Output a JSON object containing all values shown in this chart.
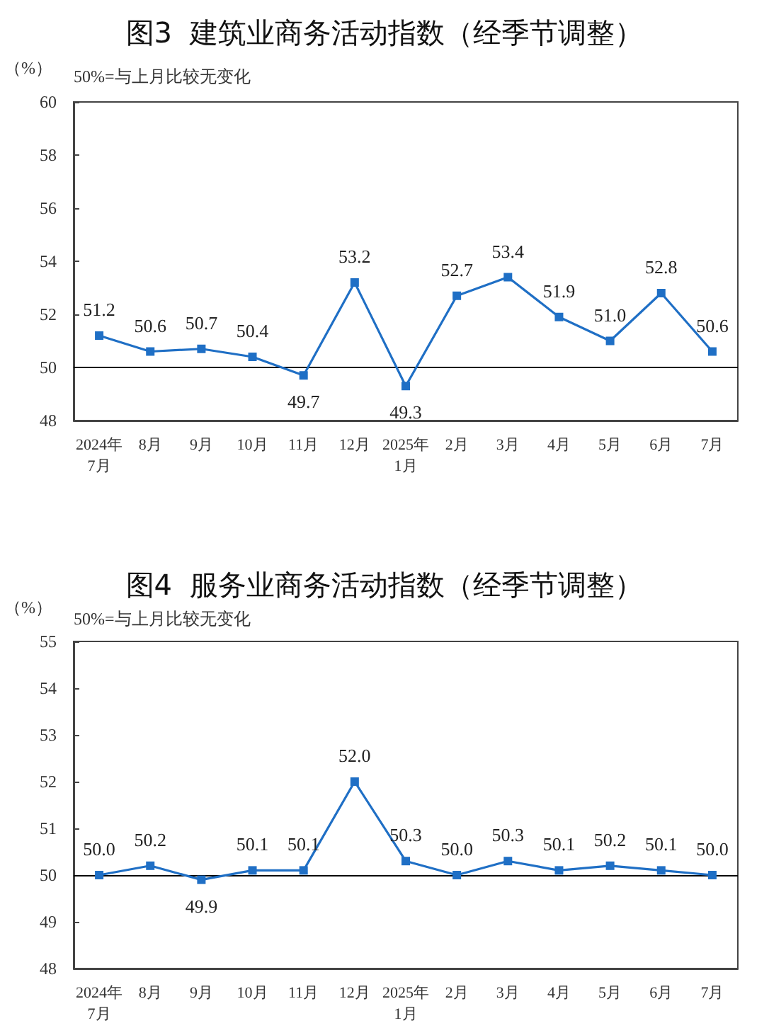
{
  "chart_data": [
    {
      "type": "line",
      "title": "图3  建筑业商务活动指数（经季节调整）",
      "ylabel": "（%）",
      "annotations": [
        "50%=与上月比较无变化"
      ],
      "categories": [
        "2024年\n7月",
        "8月",
        "9月",
        "10月",
        "11月",
        "12月",
        "2025年\n1月",
        "2月",
        "3月",
        "4月",
        "5月",
        "6月",
        "7月"
      ],
      "values": [
        51.2,
        50.6,
        50.7,
        50.4,
        49.7,
        53.2,
        49.3,
        52.7,
        53.4,
        51.9,
        51.0,
        52.8,
        50.6
      ],
      "value_labels": [
        "51.2",
        "50.6",
        "50.7",
        "50.4",
        "49.7",
        "53.2",
        "49.3",
        "52.7",
        "53.4",
        "51.9",
        "51.0",
        "52.8",
        "50.6"
      ],
      "color": "#1f6fc5",
      "marker": "square",
      "line_style": "solid",
      "ylim": [
        48,
        60
      ],
      "yticks": [
        48,
        50,
        52,
        54,
        56,
        58,
        60
      ],
      "ref_lines": [
        {
          "axis": "y",
          "value": 50,
          "color": "#000000"
        }
      ]
    },
    {
      "type": "line",
      "title": "图4  服务业商务活动指数（经季节调整）",
      "ylabel": "（%）",
      "annotations": [
        "50%=与上月比较无变化"
      ],
      "categories": [
        "2024年\n7月",
        "8月",
        "9月",
        "10月",
        "11月",
        "12月",
        "2025年\n1月",
        "2月",
        "3月",
        "4月",
        "5月",
        "6月",
        "7月"
      ],
      "values": [
        50.0,
        50.2,
        49.9,
        50.1,
        50.1,
        52.0,
        50.3,
        50.0,
        50.3,
        50.1,
        50.2,
        50.1,
        50.0
      ],
      "value_labels": [
        "50.0",
        "50.2",
        "49.9",
        "50.1",
        "50.1",
        "52.0",
        "50.3",
        "50.0",
        "50.3",
        "50.1",
        "50.2",
        "50.1",
        "50.0"
      ],
      "color": "#1f6fc5",
      "marker": "square",
      "line_style": "solid",
      "ylim": [
        48,
        55
      ],
      "yticks": [
        48,
        49,
        50,
        51,
        52,
        53,
        54,
        55
      ],
      "ref_lines": [
        {
          "axis": "y",
          "value": 50,
          "color": "#000000"
        }
      ]
    }
  ]
}
